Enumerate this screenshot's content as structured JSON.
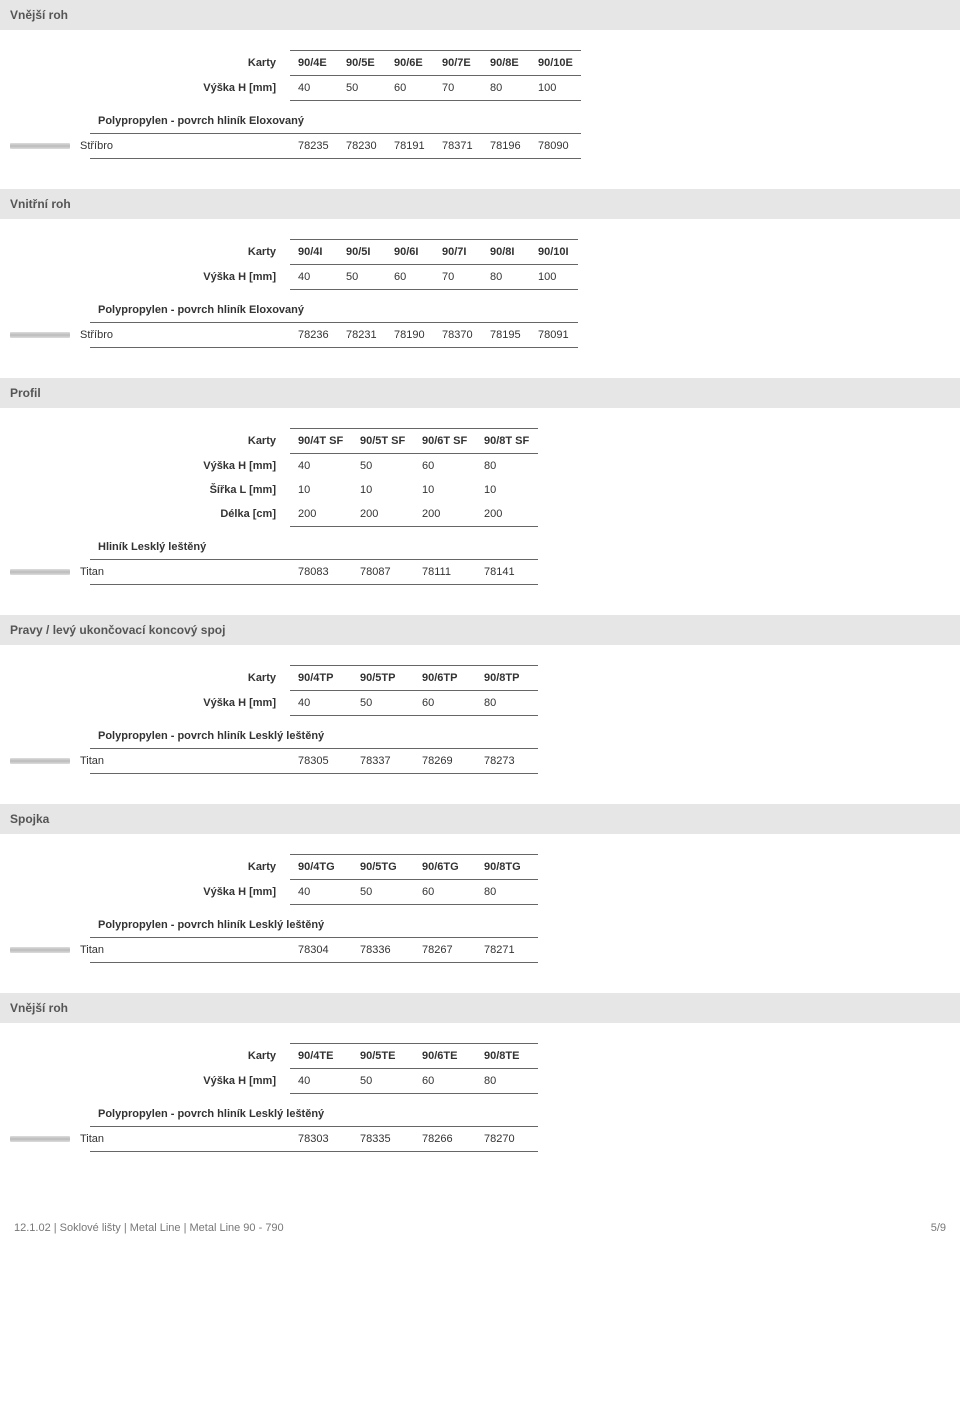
{
  "colors": {
    "header_bg": "#e6e6e6",
    "header_text": "#555555",
    "border": "#666666",
    "text": "#333333",
    "swatch_gradient": [
      "#dddddd",
      "#bbbbbb",
      "#dddddd"
    ]
  },
  "sections": [
    {
      "title": "Vnější roh",
      "label_col_text": "Karty",
      "header_cols": [
        "90/4E",
        "90/5E",
        "90/6E",
        "90/7E",
        "90/8E",
        "90/10E"
      ],
      "rows": [
        {
          "label": "Výška H [mm]",
          "cells": [
            "40",
            "50",
            "60",
            "70",
            "80",
            "100"
          ]
        }
      ],
      "subheader": "Polypropylen - povrch hliník Eloxovaný",
      "material_rows": [
        {
          "name": "Stříbro",
          "cells": [
            "78235",
            "78230",
            "78191",
            "78371",
            "78196",
            "78090"
          ]
        }
      ]
    },
    {
      "title": "Vnitřní roh",
      "label_col_text": "Karty",
      "header_cols": [
        "90/4I",
        "90/5I",
        "90/6I",
        "90/7I",
        "90/8I",
        "90/10I"
      ],
      "rows": [
        {
          "label": "Výška H [mm]",
          "cells": [
            "40",
            "50",
            "60",
            "70",
            "80",
            "100"
          ]
        }
      ],
      "subheader": "Polypropylen - povrch hliník Eloxovaný",
      "material_rows": [
        {
          "name": "Stříbro",
          "cells": [
            "78236",
            "78231",
            "78190",
            "78370",
            "78195",
            "78091"
          ]
        }
      ]
    },
    {
      "title": "Profil",
      "label_col_text": "Karty",
      "header_cols": [
        "90/4T SF",
        "90/5T SF",
        "90/6T SF",
        "90/8T SF"
      ],
      "rows": [
        {
          "label": "Výška H [mm]",
          "cells": [
            "40",
            "50",
            "60",
            "80"
          ]
        },
        {
          "label": "Šířka L [mm]",
          "cells": [
            "10",
            "10",
            "10",
            "10"
          ]
        },
        {
          "label": "Délka [cm]",
          "cells": [
            "200",
            "200",
            "200",
            "200"
          ]
        }
      ],
      "subheader": "Hliník Lesklý leštěný",
      "material_rows": [
        {
          "name": "Titan",
          "cells": [
            "78083",
            "78087",
            "78111",
            "78141"
          ]
        }
      ]
    },
    {
      "title": "Pravy / levý ukončovací koncový spoj",
      "label_col_text": "Karty",
      "header_cols": [
        "90/4TP",
        "90/5TP",
        "90/6TP",
        "90/8TP"
      ],
      "rows": [
        {
          "label": "Výška H [mm]",
          "cells": [
            "40",
            "50",
            "60",
            "80"
          ]
        }
      ],
      "subheader": "Polypropylen - povrch hliník Lesklý leštěný",
      "material_rows": [
        {
          "name": "Titan",
          "cells": [
            "78305",
            "78337",
            "78269",
            "78273"
          ]
        }
      ]
    },
    {
      "title": "Spojka",
      "label_col_text": "Karty",
      "header_cols": [
        "90/4TG",
        "90/5TG",
        "90/6TG",
        "90/8TG"
      ],
      "rows": [
        {
          "label": "Výška H [mm]",
          "cells": [
            "40",
            "50",
            "60",
            "80"
          ]
        }
      ],
      "subheader": "Polypropylen - povrch hliník Lesklý leštěný",
      "material_rows": [
        {
          "name": "Titan",
          "cells": [
            "78304",
            "78336",
            "78267",
            "78271"
          ]
        }
      ]
    },
    {
      "title": "Vnější roh",
      "label_col_text": "Karty",
      "header_cols": [
        "90/4TE",
        "90/5TE",
        "90/6TE",
        "90/8TE"
      ],
      "rows": [
        {
          "label": "Výška H [mm]",
          "cells": [
            "40",
            "50",
            "60",
            "80"
          ]
        }
      ],
      "subheader": "Polypropylen - povrch hliník Lesklý leštěný",
      "material_rows": [
        {
          "name": "Titan",
          "cells": [
            "78303",
            "78335",
            "78266",
            "78270"
          ]
        }
      ]
    }
  ],
  "footer": {
    "path": "12.1.02 | Soklové lišty | Metal Line | Metal Line 90 - 790",
    "page": "5/9"
  }
}
